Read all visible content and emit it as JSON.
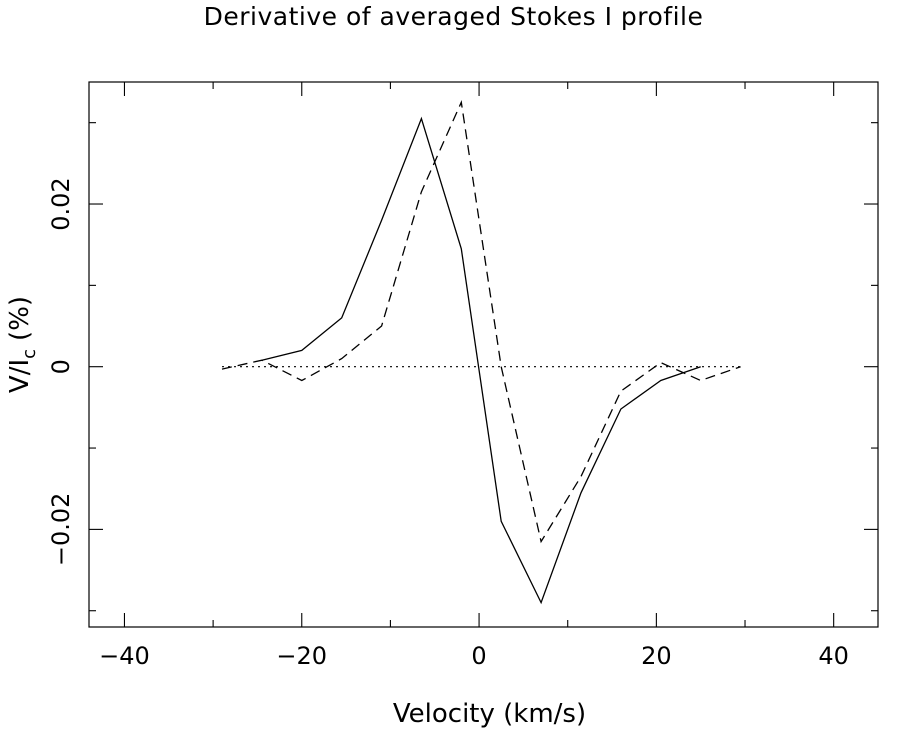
{
  "chart_data": {
    "type": "line",
    "title": "Derivative of averaged Stokes I profile",
    "xlabel": "Velocity (km/s)",
    "ylabel": "V/I",
    "ylabel_sub": "c",
    "ylabel_unit": "(%)",
    "xlim": [
      -44,
      45
    ],
    "ylim": [
      -0.032,
      0.035
    ],
    "xticks": [
      -40,
      -20,
      0,
      20,
      40
    ],
    "xtick_labels": [
      "−40",
      "−20",
      "0",
      "20",
      "40"
    ],
    "yticks": [
      -0.02,
      0,
      0.02
    ],
    "ytick_labels": [
      "−0.02",
      "0",
      "0.02"
    ],
    "series": [
      {
        "name": "solid",
        "style": "solid",
        "x": [
          -24.5,
          -20,
          -15.5,
          -11,
          -6.5,
          -2,
          2.5,
          7,
          11.5,
          16,
          20.5,
          25
        ],
        "y": [
          0.0008,
          0.002,
          0.006,
          0.018,
          0.0305,
          0.0145,
          -0.019,
          -0.029,
          -0.0155,
          -0.0052,
          -0.0017,
          0
        ]
      },
      {
        "name": "dashed",
        "style": "dashed",
        "x": [
          -29,
          -24.5,
          -20,
          -15.5,
          -11,
          -6.5,
          -2,
          2.5,
          7,
          11.5,
          16,
          20.5,
          25,
          29.5
        ],
        "y": [
          -0.0003,
          0.0008,
          -0.0017,
          0.001,
          0.005,
          0.0215,
          0.0325,
          0,
          -0.0215,
          -0.0135,
          -0.003,
          0.0005,
          -0.0017,
          0
        ]
      },
      {
        "name": "zero",
        "style": "dotted",
        "x": [
          -29,
          29.5
        ],
        "y": [
          0,
          0
        ]
      }
    ]
  }
}
